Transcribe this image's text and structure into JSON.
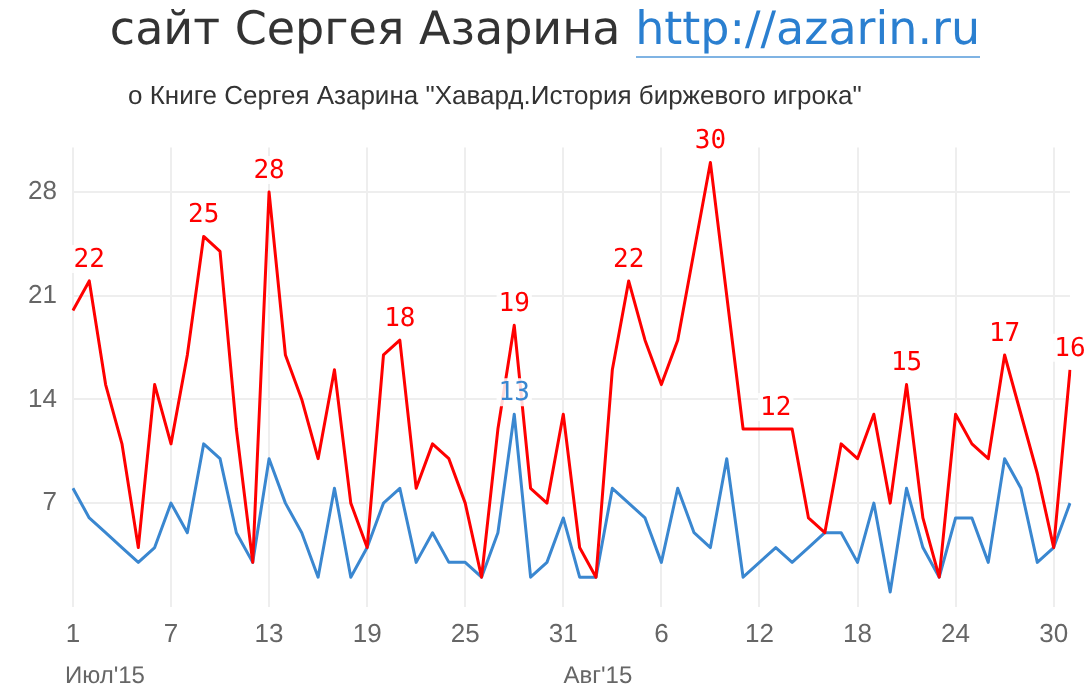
{
  "chart_data": {
    "type": "line",
    "title": "сайт Сергея Азарина http://azarin.ru",
    "subtitle": "о Книге Сергея Азарина \"Хавард.История биржевого игрока\"",
    "categories": [
      "1",
      null,
      null,
      null,
      null,
      null,
      "7",
      null,
      null,
      null,
      null,
      null,
      "13",
      null,
      null,
      null,
      null,
      null,
      "19",
      null,
      null,
      null,
      null,
      null,
      "25",
      null,
      null,
      null,
      null,
      null,
      "31",
      null,
      null,
      null,
      null,
      null,
      "6",
      null,
      null,
      null,
      null,
      null,
      "12",
      null,
      null,
      null,
      null,
      null,
      "18",
      null,
      null,
      null,
      null,
      null,
      "24",
      null,
      null,
      null,
      null,
      null,
      "30",
      null
    ],
    "series": [
      {
        "color": "#ff0000",
        "values": [
          20,
          22,
          15,
          11,
          4,
          15,
          11,
          17,
          25,
          24,
          12,
          3,
          28,
          17,
          14,
          10,
          16,
          7,
          4,
          17,
          18,
          8,
          11,
          10,
          7,
          2,
          12,
          19,
          8,
          7,
          13,
          4,
          2,
          16,
          22,
          18,
          15,
          18,
          24,
          30,
          21,
          12,
          12,
          12,
          12,
          6,
          5,
          11,
          10,
          13,
          7,
          15,
          6,
          2,
          13,
          11,
          10,
          17,
          13,
          9,
          4,
          16
        ],
        "value_labels": [
          null,
          "22",
          null,
          null,
          null,
          null,
          null,
          null,
          "25",
          null,
          null,
          null,
          "28",
          null,
          null,
          null,
          null,
          null,
          null,
          null,
          "18",
          null,
          null,
          null,
          null,
          null,
          null,
          "19",
          null,
          null,
          null,
          null,
          null,
          null,
          "22",
          null,
          null,
          null,
          null,
          "30",
          null,
          null,
          null,
          "12",
          null,
          null,
          null,
          null,
          null,
          null,
          null,
          "15",
          null,
          null,
          null,
          null,
          null,
          "17",
          null,
          null,
          null,
          "16"
        ]
      },
      {
        "color": "#3a87d0",
        "values": [
          8,
          6,
          5,
          4,
          3,
          4,
          7,
          5,
          11,
          10,
          5,
          3,
          10,
          7,
          5,
          2,
          8,
          2,
          4,
          7,
          8,
          3,
          5,
          3,
          3,
          2,
          5,
          13,
          2,
          3,
          6,
          2,
          2,
          8,
          7,
          6,
          3,
          8,
          5,
          4,
          10,
          2,
          3,
          4,
          3,
          4,
          5,
          5,
          3,
          7,
          1,
          8,
          4,
          2,
          6,
          6,
          3,
          10,
          8,
          3,
          4,
          7
        ],
        "value_labels": [
          null,
          null,
          null,
          null,
          null,
          null,
          null,
          null,
          null,
          null,
          null,
          null,
          null,
          null,
          null,
          null,
          null,
          null,
          null,
          null,
          null,
          null,
          null,
          null,
          null,
          null,
          null,
          "13",
          null,
          null,
          null,
          null,
          null,
          null,
          null,
          null,
          null,
          null,
          null,
          null,
          null,
          null,
          null,
          null,
          null,
          null,
          null,
          null,
          null,
          null,
          null,
          null,
          null,
          null,
          null,
          null,
          null,
          null,
          null,
          null,
          null,
          null
        ]
      }
    ],
    "ylim": [
      0,
      31
    ],
    "yticks": [
      7,
      14,
      21,
      28
    ],
    "grid": true,
    "legend": false,
    "marker": "none",
    "line_style": "solid",
    "annotations": [
      "Июл'15",
      "Авг'15"
    ]
  }
}
